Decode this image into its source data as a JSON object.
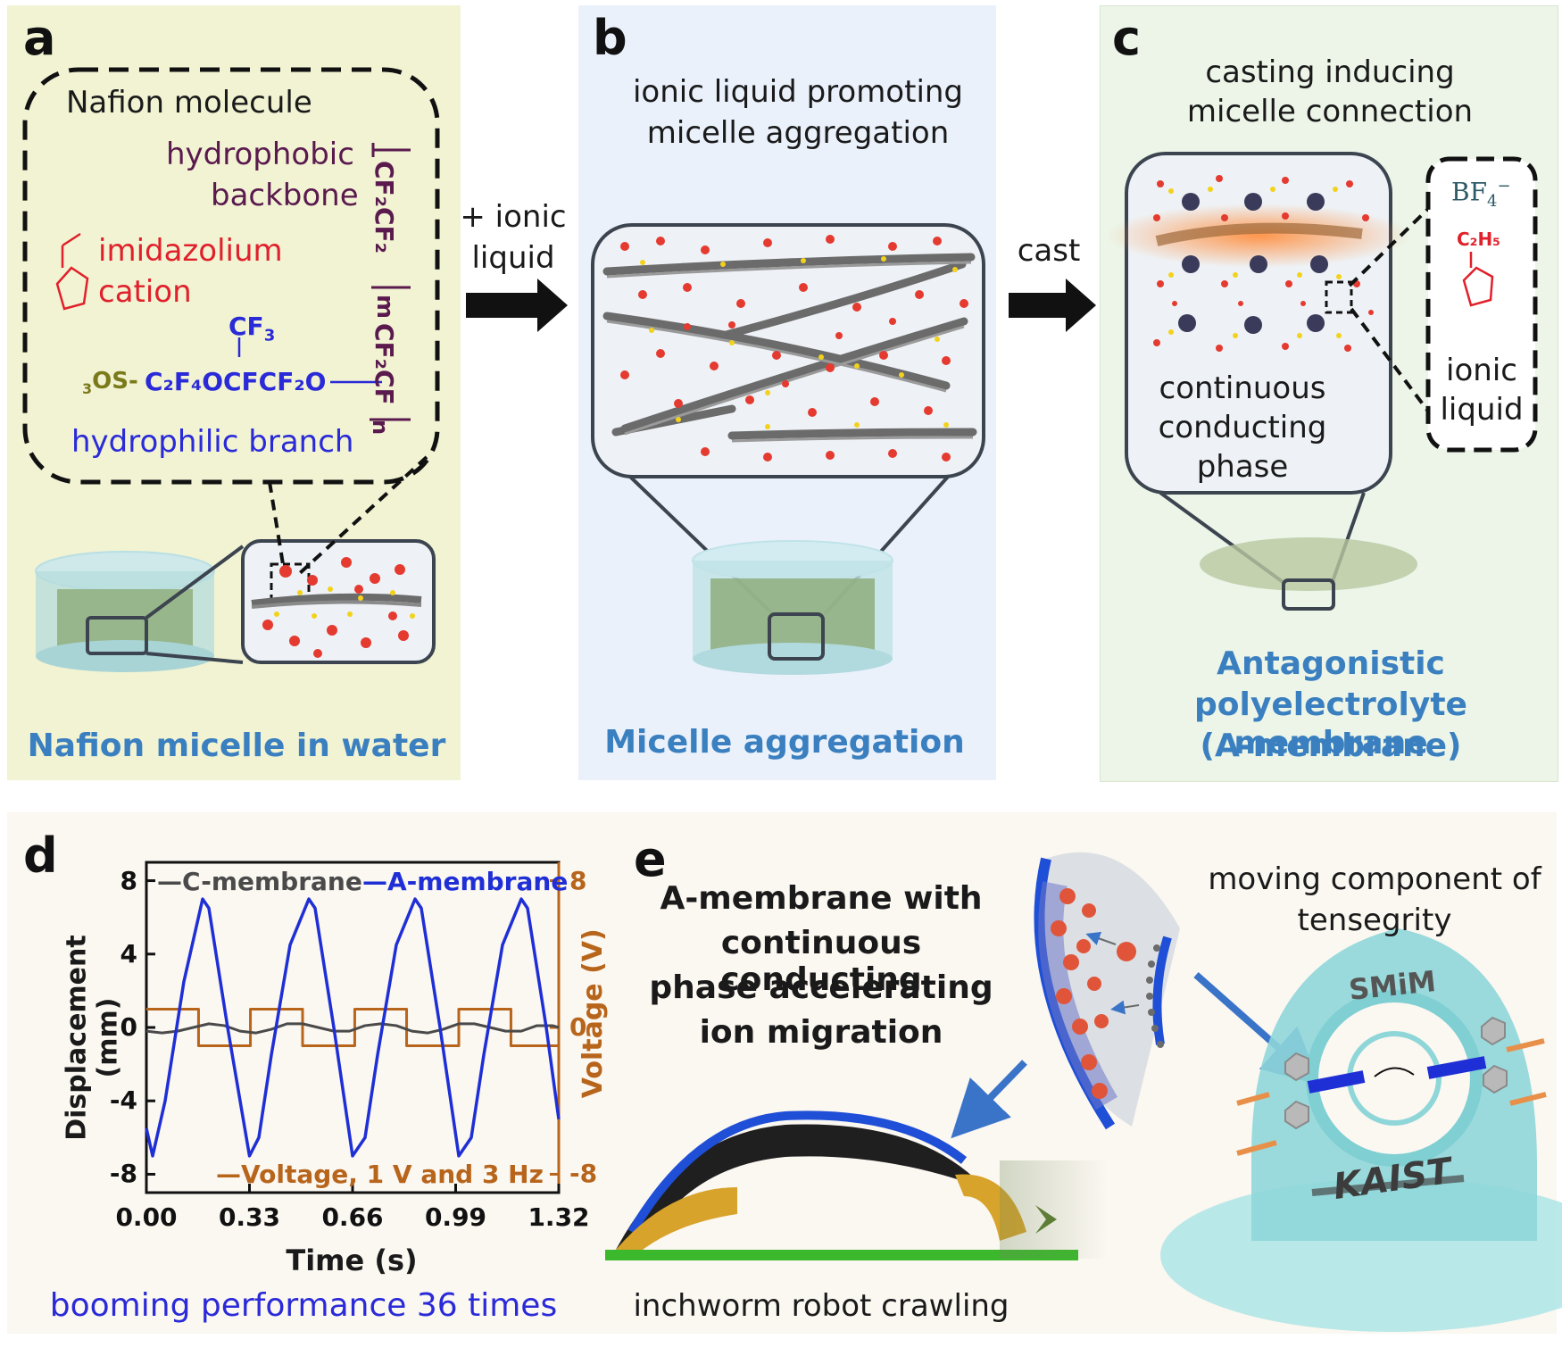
{
  "panel_a": {
    "label": "a",
    "box_title": "Nafion molecule",
    "hydrophobic": "hydrophobic",
    "backbone": "backbone",
    "imidazolium": "imidazolium",
    "cation": "cation",
    "hydrophilic": "hydrophilic branch",
    "formula_cf3": "CF",
    "formula_sub3": "3",
    "formula_so3": "OS-",
    "formula_so3_sub": "3",
    "formula_chain": "C₂F₄OCFCF₂O",
    "backbone_formula": "CF₂CF₂",
    "backbone_m": "m",
    "backbone_cf2cf": "CF₂CF",
    "backbone_n": "n",
    "caption": "Nafion micelle in water"
  },
  "arrow1": {
    "line1": "+ ionic",
    "line2": "liquid"
  },
  "panel_b": {
    "label": "b",
    "title_line1": "ionic liquid promoting",
    "title_line2": "micelle aggregation",
    "caption": "Micelle aggregation"
  },
  "arrow2": {
    "text": "cast"
  },
  "panel_c": {
    "label": "c",
    "title_line1": "casting inducing",
    "title_line2": "micelle connection",
    "inner_line1": "continuous",
    "inner_line2": "conducting",
    "inner_line3": "phase",
    "bf4": "BF",
    "bf4_sub": "4",
    "c2h5": "C₂H₅",
    "il_line1": "ionic",
    "il_line2": "liquid",
    "caption_line1": "Antagonistic",
    "caption_line2": "polyelectrolyte membrane",
    "caption_line3": "(A-membrane)"
  },
  "panel_d": {
    "label": "d",
    "caption": "booming performance 36 times"
  },
  "panel_e": {
    "label": "e",
    "title_line1": "A-membrane with",
    "title_line2": "continuous conducting",
    "title_line3": "phase accelerating",
    "title_line4": "ion migration",
    "right_line1": "moving component of",
    "right_line2": "tensegrity",
    "caption": "inchworm robot crawling",
    "logo_top": "SMiM",
    "logo_bottom": "KAIST"
  },
  "colors": {
    "panel_a_bg": "#f1f3d3",
    "panel_b_bg": "#eaf1fb",
    "panel_c_bg": "#ecf5e8",
    "panel_de_bg": "#fbf7f1",
    "caption_blue": "#3a7fbf",
    "a_membrane": "#1f2fd6",
    "c_membrane": "#4a4a4a",
    "voltage": "#b8651c",
    "imidazolium_red": "#e0202a",
    "backbone_purple": "#5a1a4e",
    "branch_blue": "#2a2ad8",
    "sulfonate_olive": "#7a7a1a"
  },
  "chart_data": {
    "type": "line",
    "title": "",
    "xlabel": "Time (s)",
    "ylabel": "Displacement (mm)",
    "y2label": "Voltage (V)",
    "xlim": [
      0,
      1.32
    ],
    "ylim": [
      -9,
      9
    ],
    "y2lim": [
      -9,
      9
    ],
    "xticks": [
      "0.00",
      "0.33",
      "0.66",
      "0.99",
      "1.32"
    ],
    "xtick_values": [
      0,
      0.33,
      0.66,
      0.99,
      1.32
    ],
    "yticks": [
      "8",
      "4",
      "0",
      "-4",
      "-8"
    ],
    "ytick_values": [
      8,
      4,
      0,
      -4,
      -8
    ],
    "y2ticks": [
      "8",
      "0",
      "-8"
    ],
    "y2tick_values": [
      8,
      0,
      -8
    ],
    "grid": false,
    "legend_placement": "top",
    "series": [
      {
        "name": "A-membrane",
        "color": "#1f2fd6",
        "x": [
          0.0,
          0.02,
          0.06,
          0.12,
          0.18,
          0.2,
          0.26,
          0.33,
          0.36,
          0.4,
          0.46,
          0.52,
          0.54,
          0.6,
          0.66,
          0.7,
          0.74,
          0.8,
          0.86,
          0.88,
          0.94,
          1.0,
          1.04,
          1.08,
          1.14,
          1.2,
          1.22,
          1.28,
          1.32
        ],
        "y": [
          -5.5,
          -7.0,
          -4.0,
          2.5,
          7.0,
          6.5,
          0.0,
          -7.0,
          -6.0,
          -1.5,
          4.5,
          7.0,
          6.5,
          0.0,
          -7.0,
          -6.0,
          -1.5,
          4.5,
          7.0,
          6.5,
          0.0,
          -7.0,
          -6.0,
          -1.5,
          4.5,
          7.0,
          6.5,
          0.0,
          -5.0
        ]
      },
      {
        "name": "C-membrane",
        "color": "#4a4a4a",
        "x": [
          0.0,
          0.05,
          0.1,
          0.15,
          0.2,
          0.25,
          0.3,
          0.35,
          0.4,
          0.45,
          0.5,
          0.55,
          0.6,
          0.65,
          0.7,
          0.75,
          0.8,
          0.85,
          0.9,
          0.95,
          1.0,
          1.05,
          1.1,
          1.15,
          1.2,
          1.25,
          1.3,
          1.32
        ],
        "y": [
          -0.2,
          -0.3,
          -0.2,
          0.0,
          0.2,
          0.1,
          -0.2,
          -0.3,
          -0.1,
          0.2,
          0.2,
          0.0,
          -0.2,
          -0.2,
          0.1,
          0.2,
          0.1,
          -0.2,
          -0.3,
          -0.1,
          0.2,
          0.2,
          0.0,
          -0.2,
          -0.2,
          0.1,
          0.1,
          0.0
        ]
      },
      {
        "name": "Voltage, 1 V and 3 Hz",
        "color": "#b8651c",
        "axis": "right",
        "x": [
          0.0,
          0.167,
          0.167,
          0.333,
          0.333,
          0.5,
          0.5,
          0.667,
          0.667,
          0.833,
          0.833,
          1.0,
          1.0,
          1.167,
          1.167,
          1.32
        ],
        "y": [
          1,
          1,
          -1,
          -1,
          1,
          1,
          -1,
          -1,
          1,
          1,
          -1,
          -1,
          1,
          1,
          -1,
          -1
        ]
      }
    ]
  }
}
